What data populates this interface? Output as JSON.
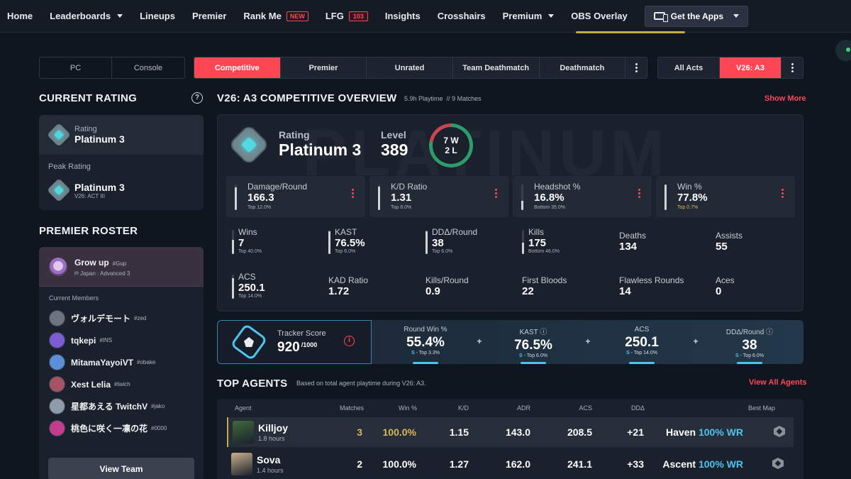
{
  "nav": {
    "items": [
      {
        "label": "Home"
      },
      {
        "label": "Leaderboards",
        "dropdown": true
      },
      {
        "label": "Lineups"
      },
      {
        "label": "Premier"
      },
      {
        "label": "Rank Me",
        "badge": "NEW"
      },
      {
        "label": "LFG",
        "count": "103"
      },
      {
        "label": "Insights"
      },
      {
        "label": "Crosshairs"
      },
      {
        "label": "Premium",
        "dropdown": true
      },
      {
        "label": "OBS Overlay"
      }
    ],
    "apps_label": "Get the Apps",
    "apps_icon": "devices-icon"
  },
  "filters": {
    "platform": [
      "PC",
      "Console"
    ],
    "modes": [
      "Competitive",
      "Premier",
      "Unrated",
      "Team Deathmatch",
      "Deathmatch"
    ],
    "active_mode": "Competitive",
    "acts": [
      "All Acts",
      "V26: A3"
    ],
    "active_act": "V26: A3"
  },
  "current_rating": {
    "title": "CURRENT RATING",
    "help": "?",
    "rating_label": "Rating",
    "rating_value": "Platinum 3",
    "peak_label": "Peak Rating",
    "peak_value": "Platinum 3",
    "peak_act": "V26: ACT III"
  },
  "roster": {
    "title": "PREMIER ROSTER",
    "team_name": "Grow up",
    "team_tag": "#Gup",
    "team_division": "Japan : Advanced 3",
    "members_label": "Current Members",
    "members": [
      {
        "name": "ヴォルデモート",
        "tag": "#zed",
        "color": "#6c7480"
      },
      {
        "name": "tqkepi",
        "tag": "#INS",
        "color": "#7b5bd6"
      },
      {
        "name": "MitamaYayoiVT",
        "tag": "#obake",
        "color": "#5b8fd8"
      },
      {
        "name": "Xest Lelia",
        "tag": "#twich",
        "color": "#a65464"
      },
      {
        "name": "星都あえる TwitchV",
        "tag": "#jako",
        "color": "#8f9aaa"
      },
      {
        "name": "桃色に咲く一凛の花",
        "tag": "#0000",
        "color": "#c23d8c"
      }
    ],
    "view_team": "View Team"
  },
  "overview": {
    "title": "V26: A3 COMPETITIVE OVERVIEW",
    "playtime": "5.9h Playtime",
    "separator": "//",
    "matches": "9 Matches",
    "show_more": "Show More",
    "watermark": "PLATINUM",
    "rating_label": "Rating",
    "rating_value": "Platinum 3",
    "level_label": "Level",
    "level_value": "389",
    "wins": "7 W",
    "losses": "2 L",
    "win_ratio": 0.78,
    "boxes": [
      {
        "label": "Damage/Round",
        "value": "166.3",
        "sub": "Top 12.0%",
        "fill": 0.88,
        "sub_color": "#aab2bc"
      },
      {
        "label": "K/D Ratio",
        "value": "1.31",
        "sub": "Top 8.0%",
        "fill": 0.92,
        "sub_color": "#aab2bc"
      },
      {
        "label": "Headshot %",
        "value": "16.8%",
        "sub": "Bottom 35.0%",
        "fill": 0.35,
        "sub_color": "#aab2bc"
      },
      {
        "label": "Win %",
        "value": "77.8%",
        "sub": "Top 0.7%",
        "fill": 0.99,
        "sub_color": "#d9b75a"
      }
    ],
    "stats_row1": [
      {
        "label": "Wins",
        "value": "7",
        "sub": "Top 40.0%",
        "fill": 0.6
      },
      {
        "label": "KAST",
        "value": "76.5%",
        "sub": "Top 6.0%",
        "fill": 0.94
      },
      {
        "label": "DDΔ/Round",
        "value": "38",
        "sub": "Top 6.0%",
        "fill": 0.94
      },
      {
        "label": "Kills",
        "value": "175",
        "sub": "Bottom 46.0%",
        "fill": 0.46
      },
      {
        "label": "Deaths",
        "value": "134"
      },
      {
        "label": "Assists",
        "value": "55"
      }
    ],
    "stats_row2": [
      {
        "label": "ACS",
        "value": "250.1",
        "sub": "Top 14.0%",
        "fill": 0.86
      },
      {
        "label": "KAD Ratio",
        "value": "1.72"
      },
      {
        "label": "Kills/Round",
        "value": "0.9"
      },
      {
        "label": "First Bloods",
        "value": "22"
      },
      {
        "label": "Flawless Rounds",
        "value": "14"
      },
      {
        "label": "Aces",
        "value": "0"
      }
    ]
  },
  "tracker": {
    "label": "Tracker Score",
    "value": "920",
    "max": "/1000",
    "info": "i",
    "cells": [
      {
        "label": "Round Win %",
        "value": "55.4%",
        "grade": "S",
        "sub": "Top 3.3%"
      },
      {
        "label": "KAST",
        "value": "76.5%",
        "grade": "S",
        "sub": "Top 6.0%",
        "info": true
      },
      {
        "label": "ACS",
        "value": "250.1",
        "grade": "S",
        "sub": "Top 14.0%"
      },
      {
        "label": "DDΔ/Round",
        "value": "38",
        "grade": "S",
        "sub": "Top 6.0%",
        "info": true
      }
    ]
  },
  "agents": {
    "title": "TOP AGENTS",
    "subtitle": "Based on total agent playtime during V26: A3.",
    "view_all": "View All Agents",
    "headers": [
      "Agent",
      "Matches",
      "Win %",
      "K/D",
      "ADR",
      "ACS",
      "DDΔ",
      "Best Map"
    ],
    "rows": [
      {
        "name": "Killjoy",
        "hours": "1.8 hours",
        "matches": "3",
        "win": "100.0%",
        "kd": "1.15",
        "adr": "143.0",
        "acs": "208.5",
        "dd": "+21",
        "map": "Haven",
        "map_wr": "100% WR",
        "portrait": "#3f6b3a",
        "selected": true
      },
      {
        "name": "Sova",
        "hours": "1.4 hours",
        "matches": "2",
        "win": "100.0%",
        "kd": "1.27",
        "adr": "162.0",
        "acs": "241.1",
        "dd": "+33",
        "map": "Ascent",
        "map_wr": "100% WR",
        "portrait": "#c9b18c",
        "selected": false
      }
    ]
  },
  "colors": {
    "accent": "#ff4655",
    "gold": "#d9b75a",
    "cyan": "#4ec3f0"
  }
}
